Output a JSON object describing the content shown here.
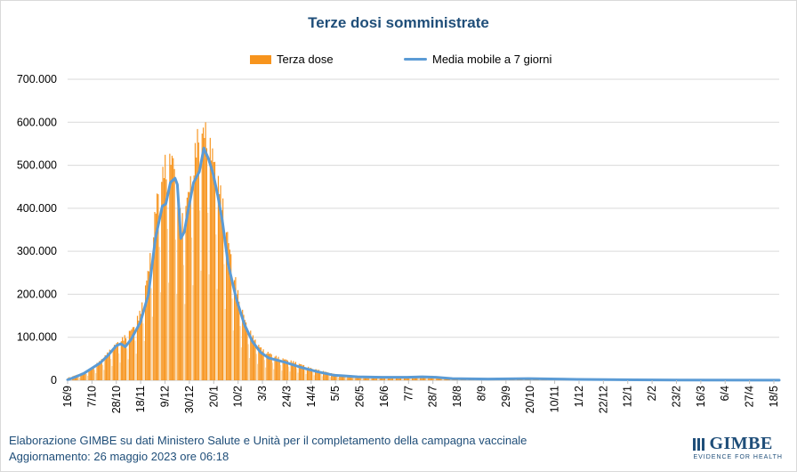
{
  "chart_data": {
    "type": "bar",
    "title": "Terze dosi somministrate",
    "legend": [
      "Terza dose",
      "Media mobile a 7 giorni"
    ],
    "legend_position": "top",
    "grid": true,
    "ylim": [
      0,
      700000
    ],
    "y_ticks": [
      "0",
      "100.000",
      "200.000",
      "300.000",
      "400.000",
      "500.000",
      "600.000",
      "700.000"
    ],
    "x_ticks": [
      "16/9",
      "7/10",
      "28/10",
      "18/11",
      "9/12",
      "30/12",
      "20/1",
      "10/2",
      "3/3",
      "24/3",
      "14/4",
      "5/5",
      "26/5",
      "16/6",
      "7/7",
      "28/7",
      "18/8",
      "8/9",
      "29/9",
      "20/10",
      "10/11",
      "1/12",
      "22/12",
      "12/1",
      "2/2",
      "23/2",
      "16/3",
      "6/4",
      "27/4",
      "18/5"
    ],
    "x_range": [
      "2021-09-16",
      "2023-05-25"
    ],
    "colors": {
      "bars": "#f7941d",
      "weekend_bars": "#fad7a8",
      "moving_average": "#5b9bd5"
    },
    "series": [
      {
        "name": "Terza dose",
        "kind": "bar",
        "weekly_samples": [
          [
            "2021-09-16",
            6000
          ],
          [
            "2021-09-30",
            18000
          ],
          [
            "2021-10-07",
            30000
          ],
          [
            "2021-10-14",
            45000
          ],
          [
            "2021-10-21",
            65000
          ],
          [
            "2021-10-28",
            85000
          ],
          [
            "2021-11-04",
            100000
          ],
          [
            "2021-11-11",
            120000
          ],
          [
            "2021-11-18",
            160000
          ],
          [
            "2021-11-25",
            260000
          ],
          [
            "2021-12-02",
            420000
          ],
          [
            "2021-12-09",
            500000
          ],
          [
            "2021-12-16",
            510000
          ],
          [
            "2021-12-23",
            360000
          ],
          [
            "2021-12-30",
            440000
          ],
          [
            "2022-01-06",
            560000
          ],
          [
            "2022-01-13",
            575000
          ],
          [
            "2022-01-20",
            510000
          ],
          [
            "2022-01-27",
            420000
          ],
          [
            "2022-02-03",
            300000
          ],
          [
            "2022-02-10",
            200000
          ],
          [
            "2022-02-17",
            130000
          ],
          [
            "2022-02-24",
            95000
          ],
          [
            "2022-03-03",
            70000
          ],
          [
            "2022-03-17",
            52000
          ],
          [
            "2022-03-31",
            42000
          ],
          [
            "2022-04-14",
            28000
          ],
          [
            "2022-05-05",
            14000
          ],
          [
            "2022-06-02",
            9000
          ],
          [
            "2022-07-07",
            8000
          ],
          [
            "2022-07-28",
            10000
          ],
          [
            "2022-08-18",
            3000
          ],
          [
            "2022-10-20",
            4000
          ],
          [
            "2023-01-12",
            1500
          ],
          [
            "2023-05-25",
            300
          ]
        ]
      },
      {
        "name": "Media mobile a 7 giorni",
        "kind": "line",
        "points": [
          [
            "2021-09-16",
            1000
          ],
          [
            "2021-09-23",
            8000
          ],
          [
            "2021-09-30",
            16000
          ],
          [
            "2021-10-07",
            28000
          ],
          [
            "2021-10-14",
            40000
          ],
          [
            "2021-10-21",
            58000
          ],
          [
            "2021-10-28",
            80000
          ],
          [
            "2021-11-01",
            85000
          ],
          [
            "2021-11-05",
            78000
          ],
          [
            "2021-11-10",
            95000
          ],
          [
            "2021-11-18",
            135000
          ],
          [
            "2021-11-25",
            200000
          ],
          [
            "2021-12-01",
            330000
          ],
          [
            "2021-12-07",
            405000
          ],
          [
            "2021-12-10",
            410000
          ],
          [
            "2021-12-14",
            460000
          ],
          [
            "2021-12-18",
            470000
          ],
          [
            "2021-12-20",
            455000
          ],
          [
            "2021-12-23",
            330000
          ],
          [
            "2021-12-26",
            345000
          ],
          [
            "2021-12-29",
            390000
          ],
          [
            "2022-01-03",
            460000
          ],
          [
            "2022-01-08",
            485000
          ],
          [
            "2022-01-12",
            540000
          ],
          [
            "2022-01-16",
            515000
          ],
          [
            "2022-01-20",
            480000
          ],
          [
            "2022-01-24",
            430000
          ],
          [
            "2022-01-28",
            370000
          ],
          [
            "2022-02-02",
            270000
          ],
          [
            "2022-02-09",
            190000
          ],
          [
            "2022-02-16",
            130000
          ],
          [
            "2022-02-23",
            90000
          ],
          [
            "2022-03-02",
            65000
          ],
          [
            "2022-03-09",
            52000
          ],
          [
            "2022-03-23",
            42000
          ],
          [
            "2022-04-06",
            30000
          ],
          [
            "2022-04-20",
            20000
          ],
          [
            "2022-05-04",
            12000
          ],
          [
            "2022-05-25",
            8000
          ],
          [
            "2022-06-15",
            7000
          ],
          [
            "2022-07-07",
            7000
          ],
          [
            "2022-07-20",
            8000
          ],
          [
            "2022-08-01",
            7000
          ],
          [
            "2022-08-15",
            4000
          ],
          [
            "2022-09-15",
            3000
          ],
          [
            "2022-10-20",
            4000
          ],
          [
            "2022-12-01",
            2000
          ],
          [
            "2023-01-20",
            1000
          ],
          [
            "2023-03-01",
            500
          ],
          [
            "2023-05-25",
            200
          ]
        ]
      }
    ]
  },
  "footer": {
    "line1": "Elaborazione GIMBE su dati Ministero Salute e Unità per il completamento della campagna vaccinale",
    "line2": "Aggiornamento: 26 maggio 2023 ore 06:18"
  },
  "logo": {
    "name": "GIMBE",
    "tagline": "EVIDENCE FOR HEALTH"
  }
}
